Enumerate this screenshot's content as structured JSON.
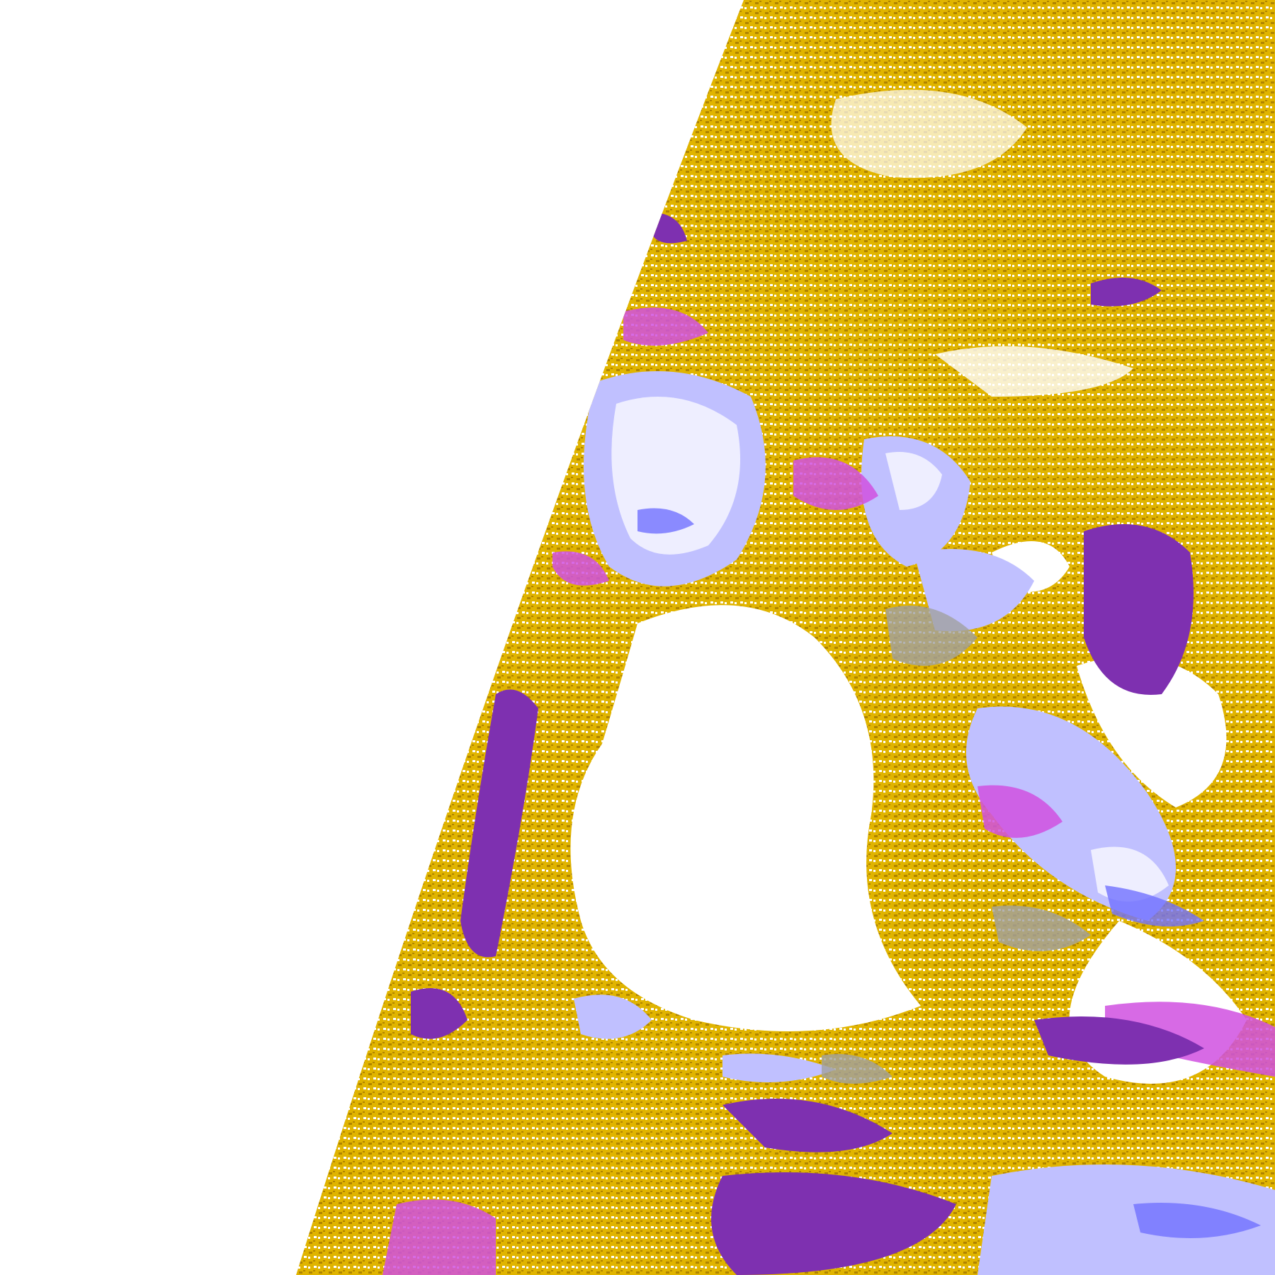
{
  "image": {
    "palette": {
      "background": "#ffffff",
      "clear": "#ffffff",
      "gold": "#e0b400",
      "dark_gold": "#b08400",
      "purple": "#7e30b0",
      "magenta": "#d050e0",
      "lavender": "#c0c0ff",
      "pale": "#eeeeff",
      "blue": "#7070ff",
      "gray": "#a0a0a0",
      "dark_gray": "#888888"
    }
  }
}
